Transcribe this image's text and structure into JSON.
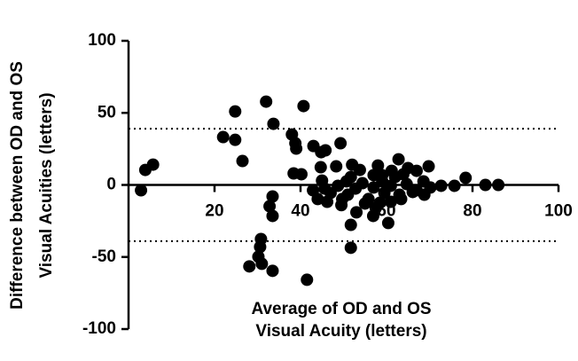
{
  "chart_data": {
    "type": "scatter",
    "x_label": [
      "Average of OD and OS",
      "Visual Acuity (letters)"
    ],
    "y_label": [
      "Difference between OD and OS",
      "Visual Acuities (letters)"
    ],
    "xlim": [
      0,
      100
    ],
    "ylim": [
      -100,
      100
    ],
    "xticks": [
      20,
      40,
      60,
      80,
      100
    ],
    "yticks": [
      -100,
      -50,
      0,
      50,
      100
    ],
    "reference_lines": [
      39,
      -39
    ],
    "color": "#000000",
    "x": [
      2.9,
      3.9,
      5.7,
      22,
      24.8,
      24.8,
      26.5,
      32,
      33.7,
      40.7,
      38,
      38.8,
      39,
      38.4,
      40.2,
      43,
      44.8,
      45.8,
      49.3,
      48.3,
      44.7,
      45,
      33.5,
      32.8,
      33.5,
      30.8,
      30.6,
      30.2,
      31,
      28.1,
      33.5,
      41.5,
      51.7,
      51.7,
      60.4,
      53,
      56.9,
      52,
      53.8,
      58,
      62.8,
      69.8,
      75.8,
      78.4,
      83,
      86,
      72.7,
      70.2,
      68.6,
      67,
      65,
      63.9,
      62,
      61,
      63,
      66.1,
      68.8,
      59,
      57,
      54.4,
      52.8,
      50.7,
      48.7,
      47,
      45.6,
      42.9,
      44,
      49.7,
      51,
      55.8,
      58.5,
      61,
      63.4,
      57.5,
      49.5,
      46.2,
      55,
      59.5,
      51.7,
      57,
      61.2,
      64.7,
      67,
      59
    ],
    "y": [
      -3.7,
      10.4,
      14.1,
      33.2,
      51,
      31.3,
      16.6,
      57.8,
      42.4,
      54.7,
      35,
      28.9,
      25.2,
      8,
      7.4,
      27,
      22.7,
      24,
      28.9,
      12.9,
      12.3,
      3,
      -8,
      -14.8,
      -21.5,
      -37.5,
      -43,
      -49.8,
      -54.7,
      -56.5,
      -59.6,
      -65.8,
      -43.6,
      -27.7,
      -26.4,
      -19,
      -21.5,
      14,
      10.4,
      13.5,
      17.8,
      12.9,
      -0.6,
      4.9,
      0,
      0,
      -0.6,
      -1.8,
      2.5,
      9.8,
      11.7,
      7.4,
      5.5,
      -0.6,
      -6.8,
      -4.9,
      -6.8,
      2.5,
      -1.8,
      1.2,
      -2.5,
      2.5,
      -0.6,
      -5.5,
      -2.5,
      -3.7,
      -9.8,
      -9.8,
      -6.8,
      -9.8,
      -12.3,
      -11.7,
      -9.8,
      -16,
      -14,
      -11.7,
      -12.9,
      -5.5,
      5.5,
      6.8,
      9.8,
      0.6,
      -3.7,
      6.8
    ]
  }
}
